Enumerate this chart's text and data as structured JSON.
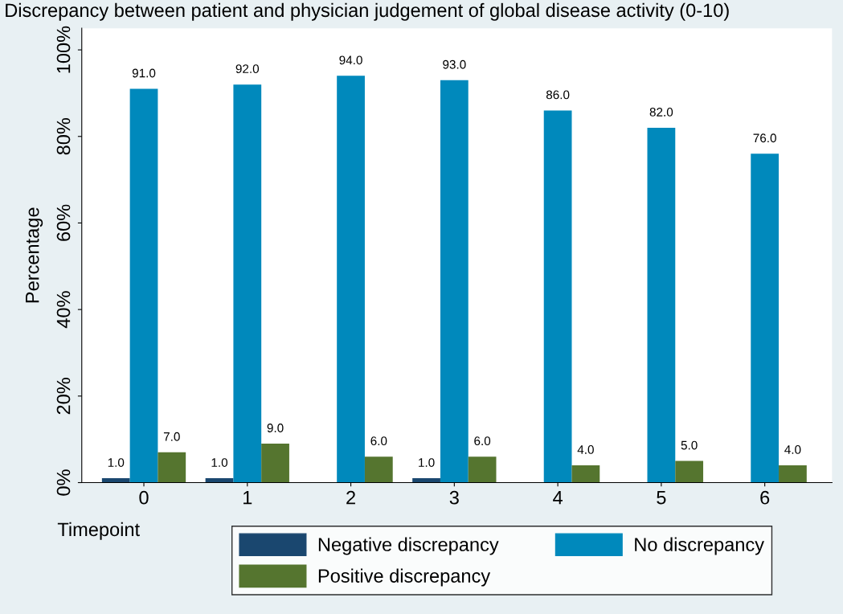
{
  "chart_data": {
    "type": "bar",
    "title": "Discrepancy between patient and physician judgement of global disease activity (0-10)",
    "xlabel": "Timepoint",
    "ylabel": "Percentage",
    "categories": [
      "0",
      "1",
      "2",
      "3",
      "4",
      "5",
      "6"
    ],
    "series": [
      {
        "name": "Negative discrepancy",
        "color": "#1a476f",
        "values": [
          1.0,
          1.0,
          0,
          1.0,
          0,
          0,
          0
        ],
        "value_labels": [
          "1.0",
          "1.0",
          null,
          "1.0",
          null,
          null,
          null
        ]
      },
      {
        "name": "No discrepancy",
        "color": "#0089bc",
        "values": [
          91.0,
          92.0,
          94.0,
          93.0,
          86.0,
          82.0,
          76.0
        ],
        "value_labels": [
          "91.0",
          "92.0",
          "94.0",
          "93.0",
          "86.0",
          "82.0",
          "76.0"
        ]
      },
      {
        "name": "Positive discrepancy",
        "color": "#55752f",
        "values": [
          7.0,
          9.0,
          6.0,
          6.0,
          4.0,
          5.0,
          4.0
        ],
        "value_labels": [
          "7.0",
          "9.0",
          "6.0",
          "6.0",
          "4.0",
          "5.0",
          "4.0"
        ]
      }
    ],
    "ylim": [
      0,
      105
    ],
    "yticks": [
      {
        "value": 0,
        "label": "0%"
      },
      {
        "value": 20,
        "label": "20%"
      },
      {
        "value": 40,
        "label": "40%"
      },
      {
        "value": 60,
        "label": "60%"
      },
      {
        "value": 80,
        "label": "80%"
      },
      {
        "value": 100,
        "label": "100%"
      }
    ],
    "grid": false,
    "legend": "bottom"
  }
}
